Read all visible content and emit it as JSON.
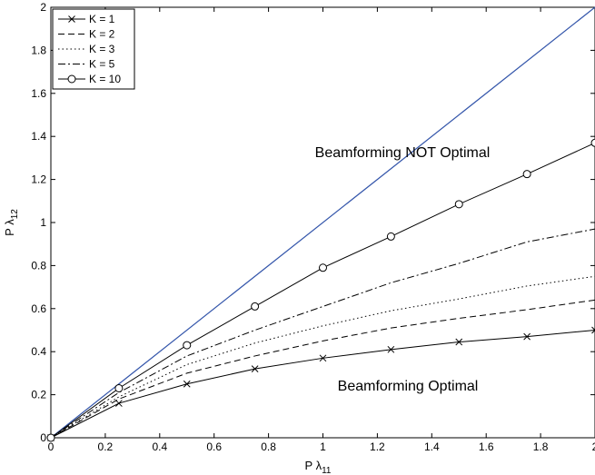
{
  "chart_data": {
    "type": "line",
    "title": "",
    "xlabel": "P λ",
    "xlabel_sub": "11",
    "ylabel": "P λ",
    "ylabel_sub": "12",
    "xlim": [
      0,
      2
    ],
    "ylim": [
      0,
      2
    ],
    "x_ticks": [
      "0",
      "0.2",
      "0.4",
      "0.6",
      "0.8",
      "1",
      "1.2",
      "1.4",
      "1.6",
      "1.8",
      "2"
    ],
    "y_ticks": [
      "0",
      "0.2",
      "0.4",
      "0.6",
      "0.8",
      "1",
      "1.2",
      "1.4",
      "1.6",
      "1.8",
      "2"
    ],
    "grid": false,
    "legend_position": "top-left",
    "reference_line": {
      "x": [
        0,
        2
      ],
      "y": [
        0,
        2
      ],
      "color": "#3355aa"
    },
    "x": [
      0,
      0.25,
      0.5,
      0.75,
      1.0,
      1.25,
      1.5,
      1.75,
      2.0
    ],
    "series": [
      {
        "name": "K = 1",
        "style": "solid",
        "marker": "x",
        "values": [
          0,
          0.16,
          0.25,
          0.32,
          0.37,
          0.41,
          0.445,
          0.47,
          0.5
        ]
      },
      {
        "name": "K = 2",
        "style": "dashed",
        "marker": "",
        "values": [
          0,
          0.18,
          0.3,
          0.38,
          0.45,
          0.51,
          0.555,
          0.595,
          0.64
        ]
      },
      {
        "name": "K = 3",
        "style": "dotted",
        "marker": "",
        "values": [
          0,
          0.19,
          0.34,
          0.44,
          0.52,
          0.59,
          0.645,
          0.705,
          0.75
        ]
      },
      {
        "name": "K = 5",
        "style": "dashdot",
        "marker": "",
        "values": [
          0,
          0.21,
          0.38,
          0.5,
          0.61,
          0.72,
          0.81,
          0.91,
          0.97
        ]
      },
      {
        "name": "K = 10",
        "style": "solid",
        "marker": "o",
        "values": [
          0,
          0.23,
          0.43,
          0.61,
          0.79,
          0.935,
          1.085,
          1.225,
          1.37
        ]
      }
    ],
    "annotations": [
      {
        "text": "Beamforming NOT Optimal",
        "x": 1.3,
        "y": 1.33
      },
      {
        "text": "Beamforming Optimal",
        "x": 1.3,
        "y": 0.3
      }
    ]
  }
}
